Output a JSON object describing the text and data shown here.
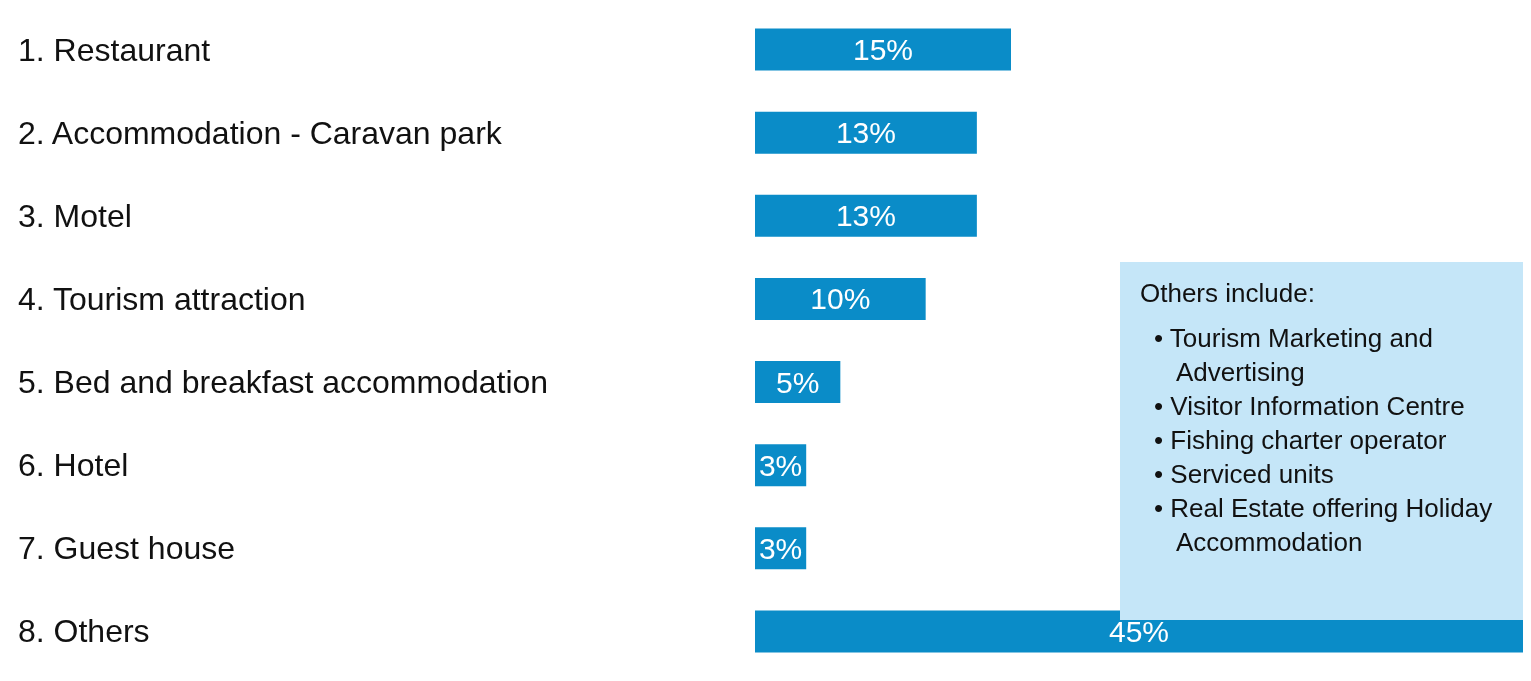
{
  "chart_data": {
    "type": "bar",
    "orientation": "horizontal",
    "categories": [
      "1. Restaurant",
      "2. Accommodation - Caravan park",
      "3. Motel",
      "4. Tourism attraction",
      "5. Bed and breakfast accommodation",
      "6. Hotel",
      "7. Guest house",
      "8. Others"
    ],
    "values": [
      15,
      13,
      13,
      10,
      5,
      3,
      3,
      45
    ],
    "value_labels": [
      "15%",
      "13%",
      "13%",
      "10%",
      "5%",
      "3%",
      "3%",
      "45%"
    ],
    "color": "#0a8cc8",
    "xlim": [
      0,
      45
    ],
    "tick_labels": "y",
    "grid": false,
    "annotations": [
      "Others include:",
      "• Tourism Marketing and Advertising",
      "• Visitor Information Centre",
      "• Fishing charter operator",
      "• Serviced units",
      "• Real Estate offering Holiday Accommodation"
    ]
  }
}
